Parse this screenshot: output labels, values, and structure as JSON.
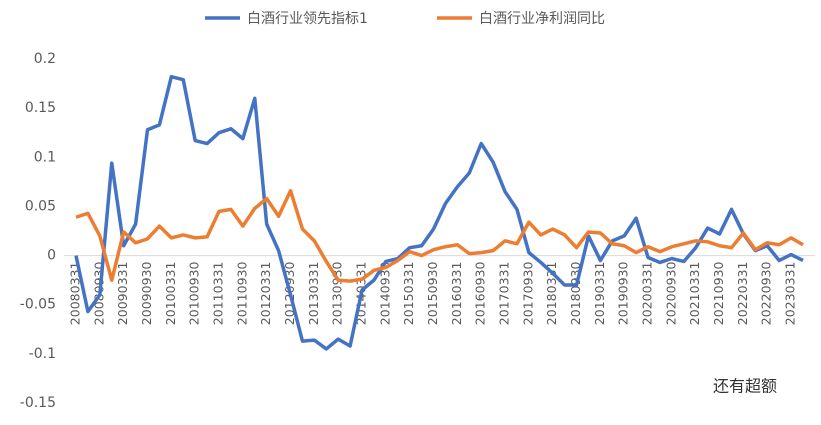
{
  "chart_data": {
    "type": "line",
    "categories": [
      "20080331",
      null,
      "20080930",
      null,
      "20090331",
      null,
      "20090930",
      null,
      "20100331",
      null,
      "20100930",
      null,
      "20110331",
      null,
      "20110930",
      null,
      "20120331",
      null,
      "20120930",
      null,
      "20130331",
      null,
      "20130930",
      null,
      "20140331",
      null,
      "20140930",
      null,
      "20150331",
      null,
      "20150930",
      null,
      "20160331",
      null,
      "20160930",
      null,
      "20170331",
      null,
      "20170930",
      null,
      "20180331",
      null,
      "20180930",
      null,
      "20190331",
      null,
      "20190930",
      null,
      "20200331",
      null,
      "20200930",
      null,
      "20210331",
      null,
      "20210930",
      null,
      "20220331",
      null,
      "20220930",
      null,
      "20230331",
      null
    ],
    "series": [
      {
        "name": "白酒行业领先指标1",
        "color": "#4472c4",
        "values": [
          0,
          -0.057,
          -0.04,
          0.094,
          0.01,
          0.032,
          0.128,
          0.133,
          0.182,
          0.179,
          0.117,
          0.114,
          0.125,
          0.129,
          0.119,
          0.16,
          0.032,
          0.005,
          -0.04,
          -0.087,
          -0.086,
          -0.095,
          -0.085,
          -0.092,
          -0.035,
          -0.025,
          -0.006,
          -0.003,
          0.008,
          0.01,
          0.027,
          0.053,
          0.07,
          0.084,
          0.114,
          0.095,
          0.065,
          0.047,
          0.003,
          -0.007,
          -0.018,
          -0.03,
          -0.03,
          0.02,
          -0.005,
          0.015,
          0.02,
          0.038,
          -0.002,
          -0.007,
          -0.003,
          -0.006,
          0.008,
          0.028,
          0.022,
          0.047,
          0.022,
          0.005,
          0.01,
          -0.005,
          0.001,
          -0.005
        ]
      },
      {
        "name": "白酒行业净利润同比",
        "color": "#ed7d31",
        "values": [
          0.039,
          0.043,
          0.02,
          -0.025,
          0.024,
          0.013,
          0.017,
          0.03,
          0.018,
          0.021,
          0.018,
          0.019,
          0.045,
          0.047,
          0.03,
          0.048,
          0.058,
          0.04,
          0.066,
          0.027,
          0.015,
          -0.006,
          -0.025,
          -0.026,
          -0.024,
          -0.015,
          -0.012,
          -0.005,
          0.004,
          0.0,
          0.006,
          0.009,
          0.011,
          0.002,
          0.003,
          0.005,
          0.015,
          0.012,
          0.034,
          0.021,
          0.027,
          0.021,
          0.008,
          0.024,
          0.023,
          0.012,
          0.01,
          0.003,
          0.009,
          0.004,
          0.009,
          0.012,
          0.015,
          0.014,
          0.01,
          0.008,
          0.023,
          0.006,
          0.013,
          0.011,
          0.018,
          0.011
        ]
      }
    ],
    "ylim": [
      -0.15,
      0.2
    ],
    "yticks": [
      0.2,
      0.15,
      0.1,
      0.05,
      0,
      -0.05,
      -0.1,
      -0.15
    ],
    "grid": false,
    "legend": "top",
    "watermark": "还有超额"
  }
}
